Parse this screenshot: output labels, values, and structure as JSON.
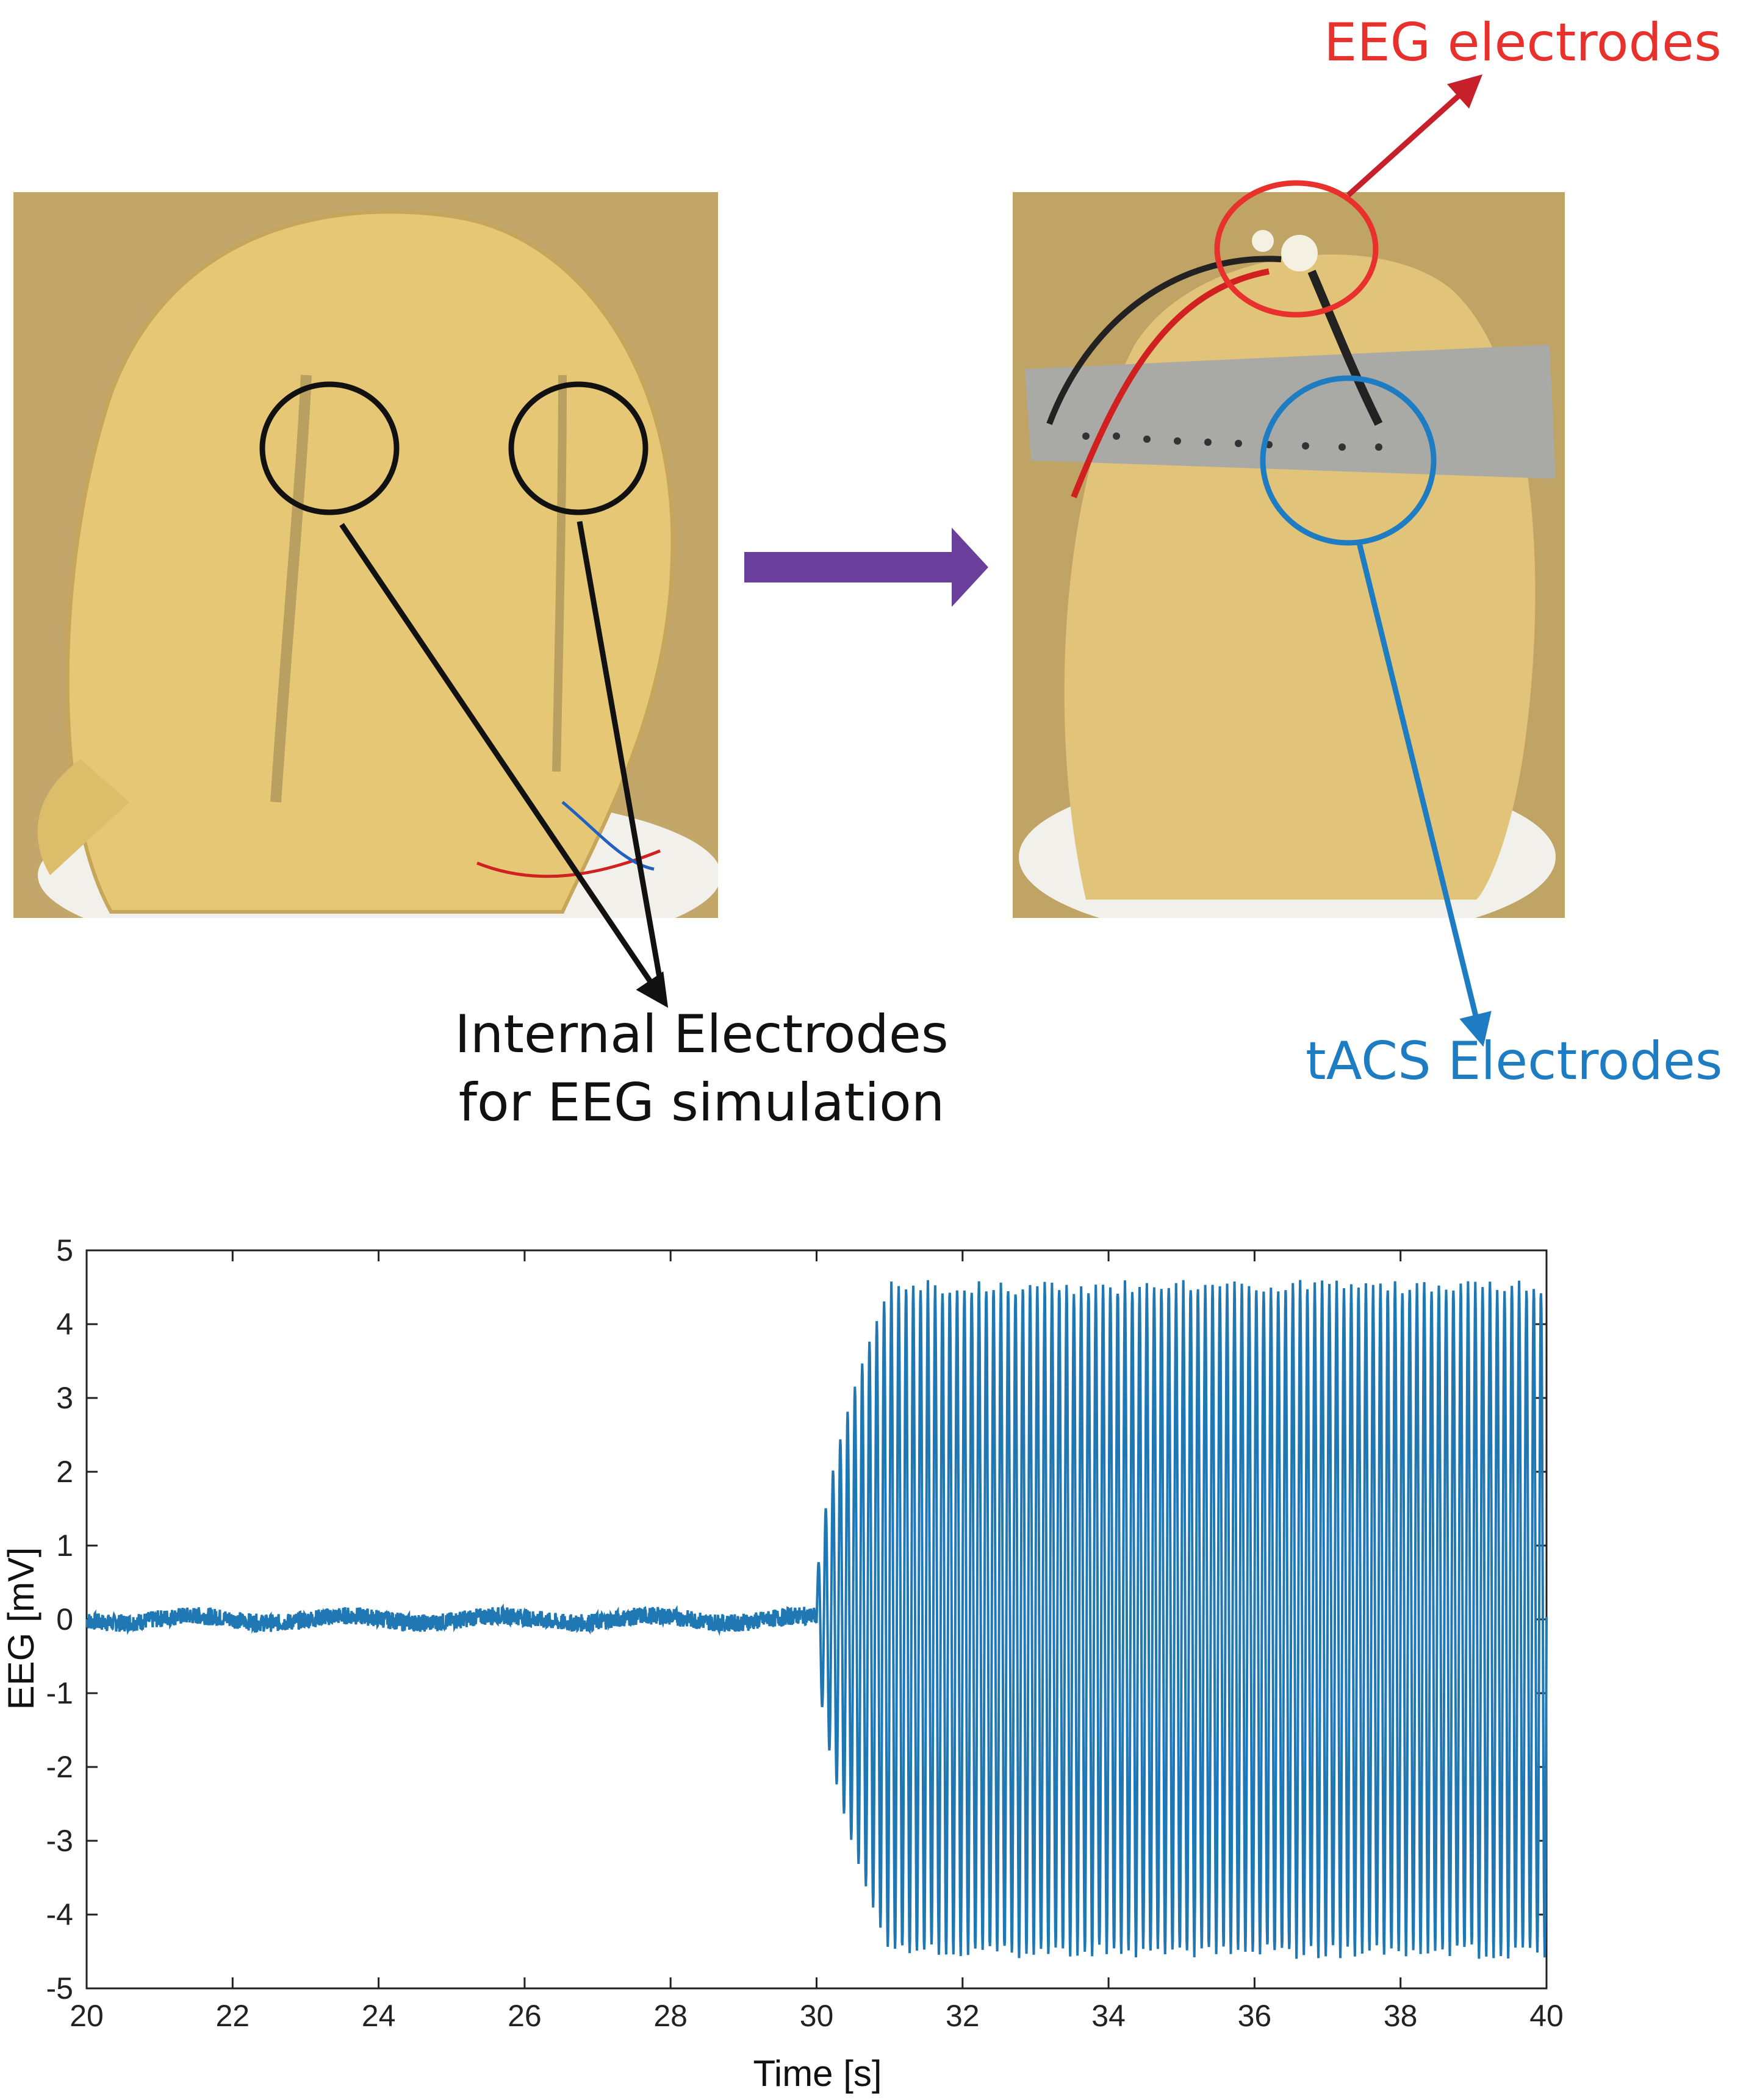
{
  "figure": {
    "photo_left": {
      "description_icon": "phantom-head-photo"
    },
    "photo_right": {
      "description_icon": "phantom-head-with-electrodes-photo"
    },
    "labels": {
      "eeg_electrodes": "EEG electrodes",
      "tacs_electrodes": "tACS Electrodes",
      "internal_line1": "Internal Electrodes",
      "internal_line2": "for EEG simulation"
    },
    "colors": {
      "eeg_label": "#e8302c",
      "tacs_label": "#1e7cc3",
      "arrow": "#6a3f9c",
      "signal": "#1f77b4"
    }
  },
  "chart_data": {
    "type": "line",
    "xlabel": "Time [s]",
    "ylabel": "EEG [mV]",
    "xlim": [
      20,
      40
    ],
    "ylim": [
      -5,
      5
    ],
    "xticks": [
      20,
      22,
      24,
      26,
      28,
      30,
      32,
      34,
      36,
      38,
      40
    ],
    "yticks": [
      -5,
      -4,
      -3,
      -2,
      -1,
      0,
      1,
      2,
      3,
      4,
      5
    ],
    "grid": false,
    "series": [
      {
        "color": "#1f77b4",
        "description": "baseline noise approx 0 mV (±0.2) from 20 s to 30 s, then sinusoidal tACS artifact ramping up from 30 s to 31 s and sustained oscillation of about ±4.5 mV from 31 s to 40 s",
        "segments": [
          {
            "t_start": 20,
            "t_end": 30,
            "amplitude": 0.12
          },
          {
            "t_start": 30,
            "t_end": 31,
            "amplitude_start": 0.3,
            "amplitude_end": 4.5
          },
          {
            "t_start": 31,
            "t_end": 40,
            "amplitude": 4.5
          }
        ],
        "oscillation_cycles_per_second": 10
      }
    ]
  }
}
